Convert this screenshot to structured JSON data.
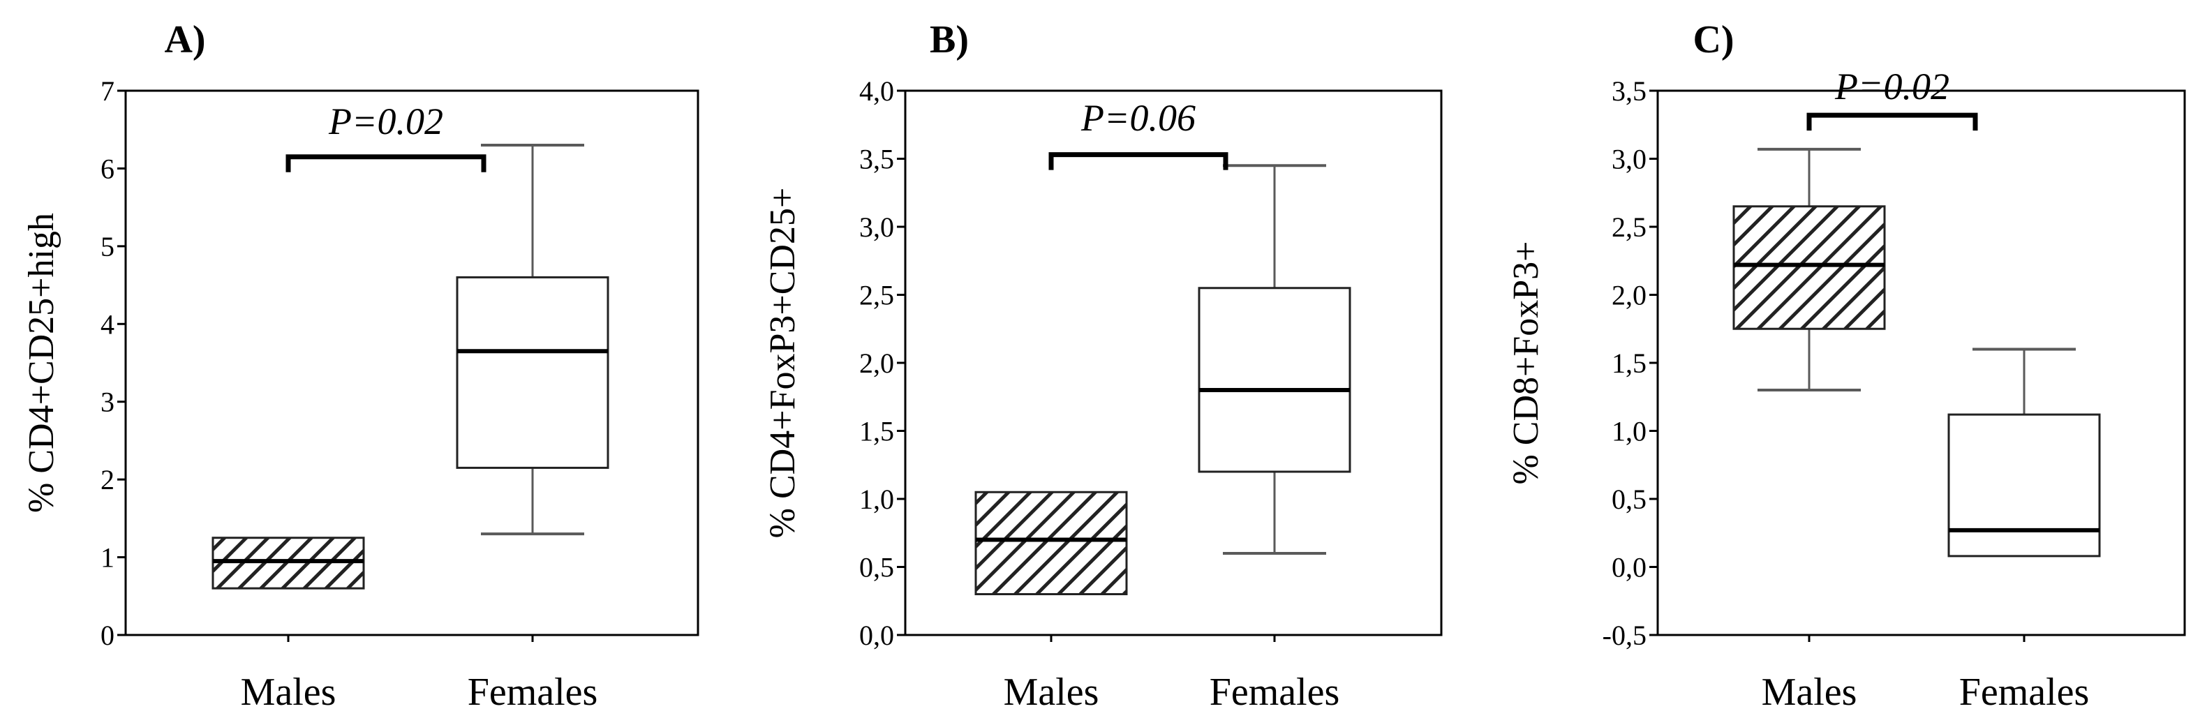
{
  "colors": {
    "axis": "#000000",
    "whisker": "#5a5a5a",
    "box_edge": "#222222",
    "hatch": "#222222",
    "background": "#ffffff"
  },
  "chart_data": [
    {
      "type": "box",
      "panel_label": "A)",
      "title": "",
      "ylabel": "% CD4+CD25+high",
      "xlabel": "",
      "ylim": [
        0,
        7
      ],
      "y_ticks": [
        0,
        1,
        2,
        3,
        4,
        5,
        6,
        7
      ],
      "y_tick_labels": [
        "0",
        "1",
        "2",
        "3",
        "4",
        "5",
        "6",
        "7"
      ],
      "categories": [
        "Males",
        "Females"
      ],
      "boxes": [
        {
          "name": "Males",
          "fill": "hatched",
          "whisker_low": 0.6,
          "q1": 0.6,
          "median": 0.95,
          "q3": 1.25,
          "whisker_high": 1.25
        },
        {
          "name": "Females",
          "fill": "white",
          "whisker_low": 1.3,
          "q1": 2.15,
          "median": 3.65,
          "q3": 4.6,
          "whisker_high": 6.3
        }
      ],
      "annotations": [
        {
          "text": "P=0.02",
          "bracket_y": 6.15,
          "text_y": 6.55
        }
      ]
    },
    {
      "type": "box",
      "panel_label": "B)",
      "title": "",
      "ylabel": "% CD4+FoxP3+CD25+",
      "xlabel": "",
      "ylim": [
        0,
        4.0
      ],
      "y_ticks": [
        0,
        0.5,
        1.0,
        1.5,
        2.0,
        2.5,
        3.0,
        3.5,
        4.0
      ],
      "y_tick_labels": [
        "0,0",
        "0,5",
        "1,0",
        "1,5",
        "2,0",
        "2,5",
        "3,0",
        "3,5",
        "4,0"
      ],
      "categories": [
        "Males",
        "Females"
      ],
      "boxes": [
        {
          "name": "Males",
          "fill": "hatched",
          "whisker_low": 0.3,
          "q1": 0.3,
          "median": 0.7,
          "q3": 1.05,
          "whisker_high": 1.05
        },
        {
          "name": "Females",
          "fill": "white",
          "whisker_low": 0.6,
          "q1": 1.2,
          "median": 1.8,
          "q3": 2.55,
          "whisker_high": 3.45
        }
      ],
      "annotations": [
        {
          "text": "P=0.06",
          "bracket_y": 3.53,
          "text_y": 3.77
        }
      ]
    },
    {
      "type": "box",
      "panel_label": "C)",
      "title": "",
      "ylabel": "% CD8+FoxP3+",
      "xlabel": "",
      "ylim": [
        -0.5,
        3.5
      ],
      "y_ticks": [
        -0.5,
        0.0,
        0.5,
        1.0,
        1.5,
        2.0,
        2.5,
        3.0,
        3.5
      ],
      "y_tick_labels": [
        "-0,5",
        "0,0",
        "0,5",
        "1,0",
        "1,5",
        "2,0",
        "2,5",
        "3,0",
        "3,5"
      ],
      "categories": [
        "Males",
        "Females"
      ],
      "boxes": [
        {
          "name": "Males",
          "fill": "hatched",
          "whisker_low": 1.3,
          "q1": 1.75,
          "median": 2.22,
          "q3": 2.65,
          "whisker_high": 3.07
        },
        {
          "name": "Females",
          "fill": "white",
          "whisker_low": 0.08,
          "q1": 0.08,
          "median": 0.27,
          "q3": 1.12,
          "whisker_high": 1.6
        }
      ],
      "annotations": [
        {
          "text": "P=0.02",
          "bracket_y": 3.32,
          "text_y": 3.5
        }
      ]
    }
  ]
}
